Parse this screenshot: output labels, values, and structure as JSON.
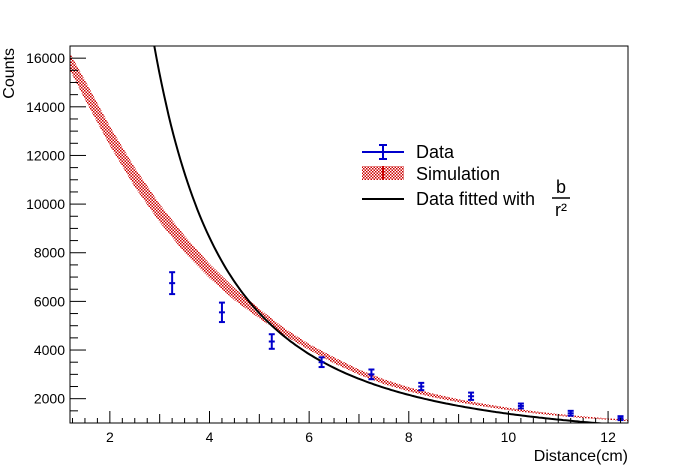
{
  "chart_data": {
    "type": "scatter",
    "title": "",
    "xlabel": "Distance(cm)",
    "ylabel": "Counts",
    "xlim": [
      1.2,
      12.4
    ],
    "ylim": [
      1000,
      16500
    ],
    "x_ticks": [
      2,
      4,
      6,
      8,
      10,
      12
    ],
    "x_tick_labels": [
      "2",
      "4",
      "6",
      "8",
      "10",
      "12"
    ],
    "y_ticks": [
      2000,
      4000,
      6000,
      8000,
      10000,
      12000,
      14000,
      16000
    ],
    "y_tick_labels": [
      "2000",
      "4000",
      "6000",
      "8000",
      "10000",
      "12000",
      "14000",
      "16000"
    ],
    "legend_position": "center-right",
    "series": [
      {
        "name": "Data",
        "kind": "points-with-errors",
        "color": "#0000cc",
        "x": [
          3.25,
          4.25,
          5.25,
          6.25,
          7.25,
          8.25,
          9.25,
          10.25,
          11.25,
          12.25
        ],
        "y": [
          6750,
          5550,
          4350,
          3500,
          3000,
          2500,
          2100,
          1700,
          1400,
          1200
        ],
        "yerr": [
          450,
          400,
          300,
          200,
          200,
          150,
          150,
          100,
          100,
          80
        ]
      },
      {
        "name": "Simulation",
        "kind": "band",
        "color": "#cc0000",
        "x": [
          1.2,
          1.5,
          2.0,
          2.5,
          3.0,
          3.5,
          4.0,
          4.5,
          5.0,
          5.5,
          6.0,
          6.5,
          7.0,
          7.5,
          8.0,
          8.5,
          9.0,
          9.5,
          10.0,
          10.5,
          11.0,
          11.5,
          12.0,
          12.4
        ],
        "low": [
          15500,
          14300,
          12400,
          10700,
          9250,
          8000,
          6950,
          6050,
          5300,
          4600,
          4000,
          3450,
          2980,
          2600,
          2300,
          2050,
          1850,
          1680,
          1530,
          1400,
          1290,
          1200,
          1130,
          1080
        ],
        "high": [
          16200,
          15100,
          13200,
          11500,
          10000,
          8700,
          7550,
          6550,
          5700,
          4900,
          4250,
          3700,
          3200,
          2800,
          2470,
          2200,
          1980,
          1790,
          1630,
          1490,
          1370,
          1270,
          1190,
          1140
        ]
      },
      {
        "name": "Data fitted with",
        "kind": "line",
        "color": "#000000",
        "formula_numerator": "b",
        "formula_denominator": "r²",
        "b": 138000,
        "x_start": 2.7,
        "x_end": 12.3
      }
    ]
  }
}
